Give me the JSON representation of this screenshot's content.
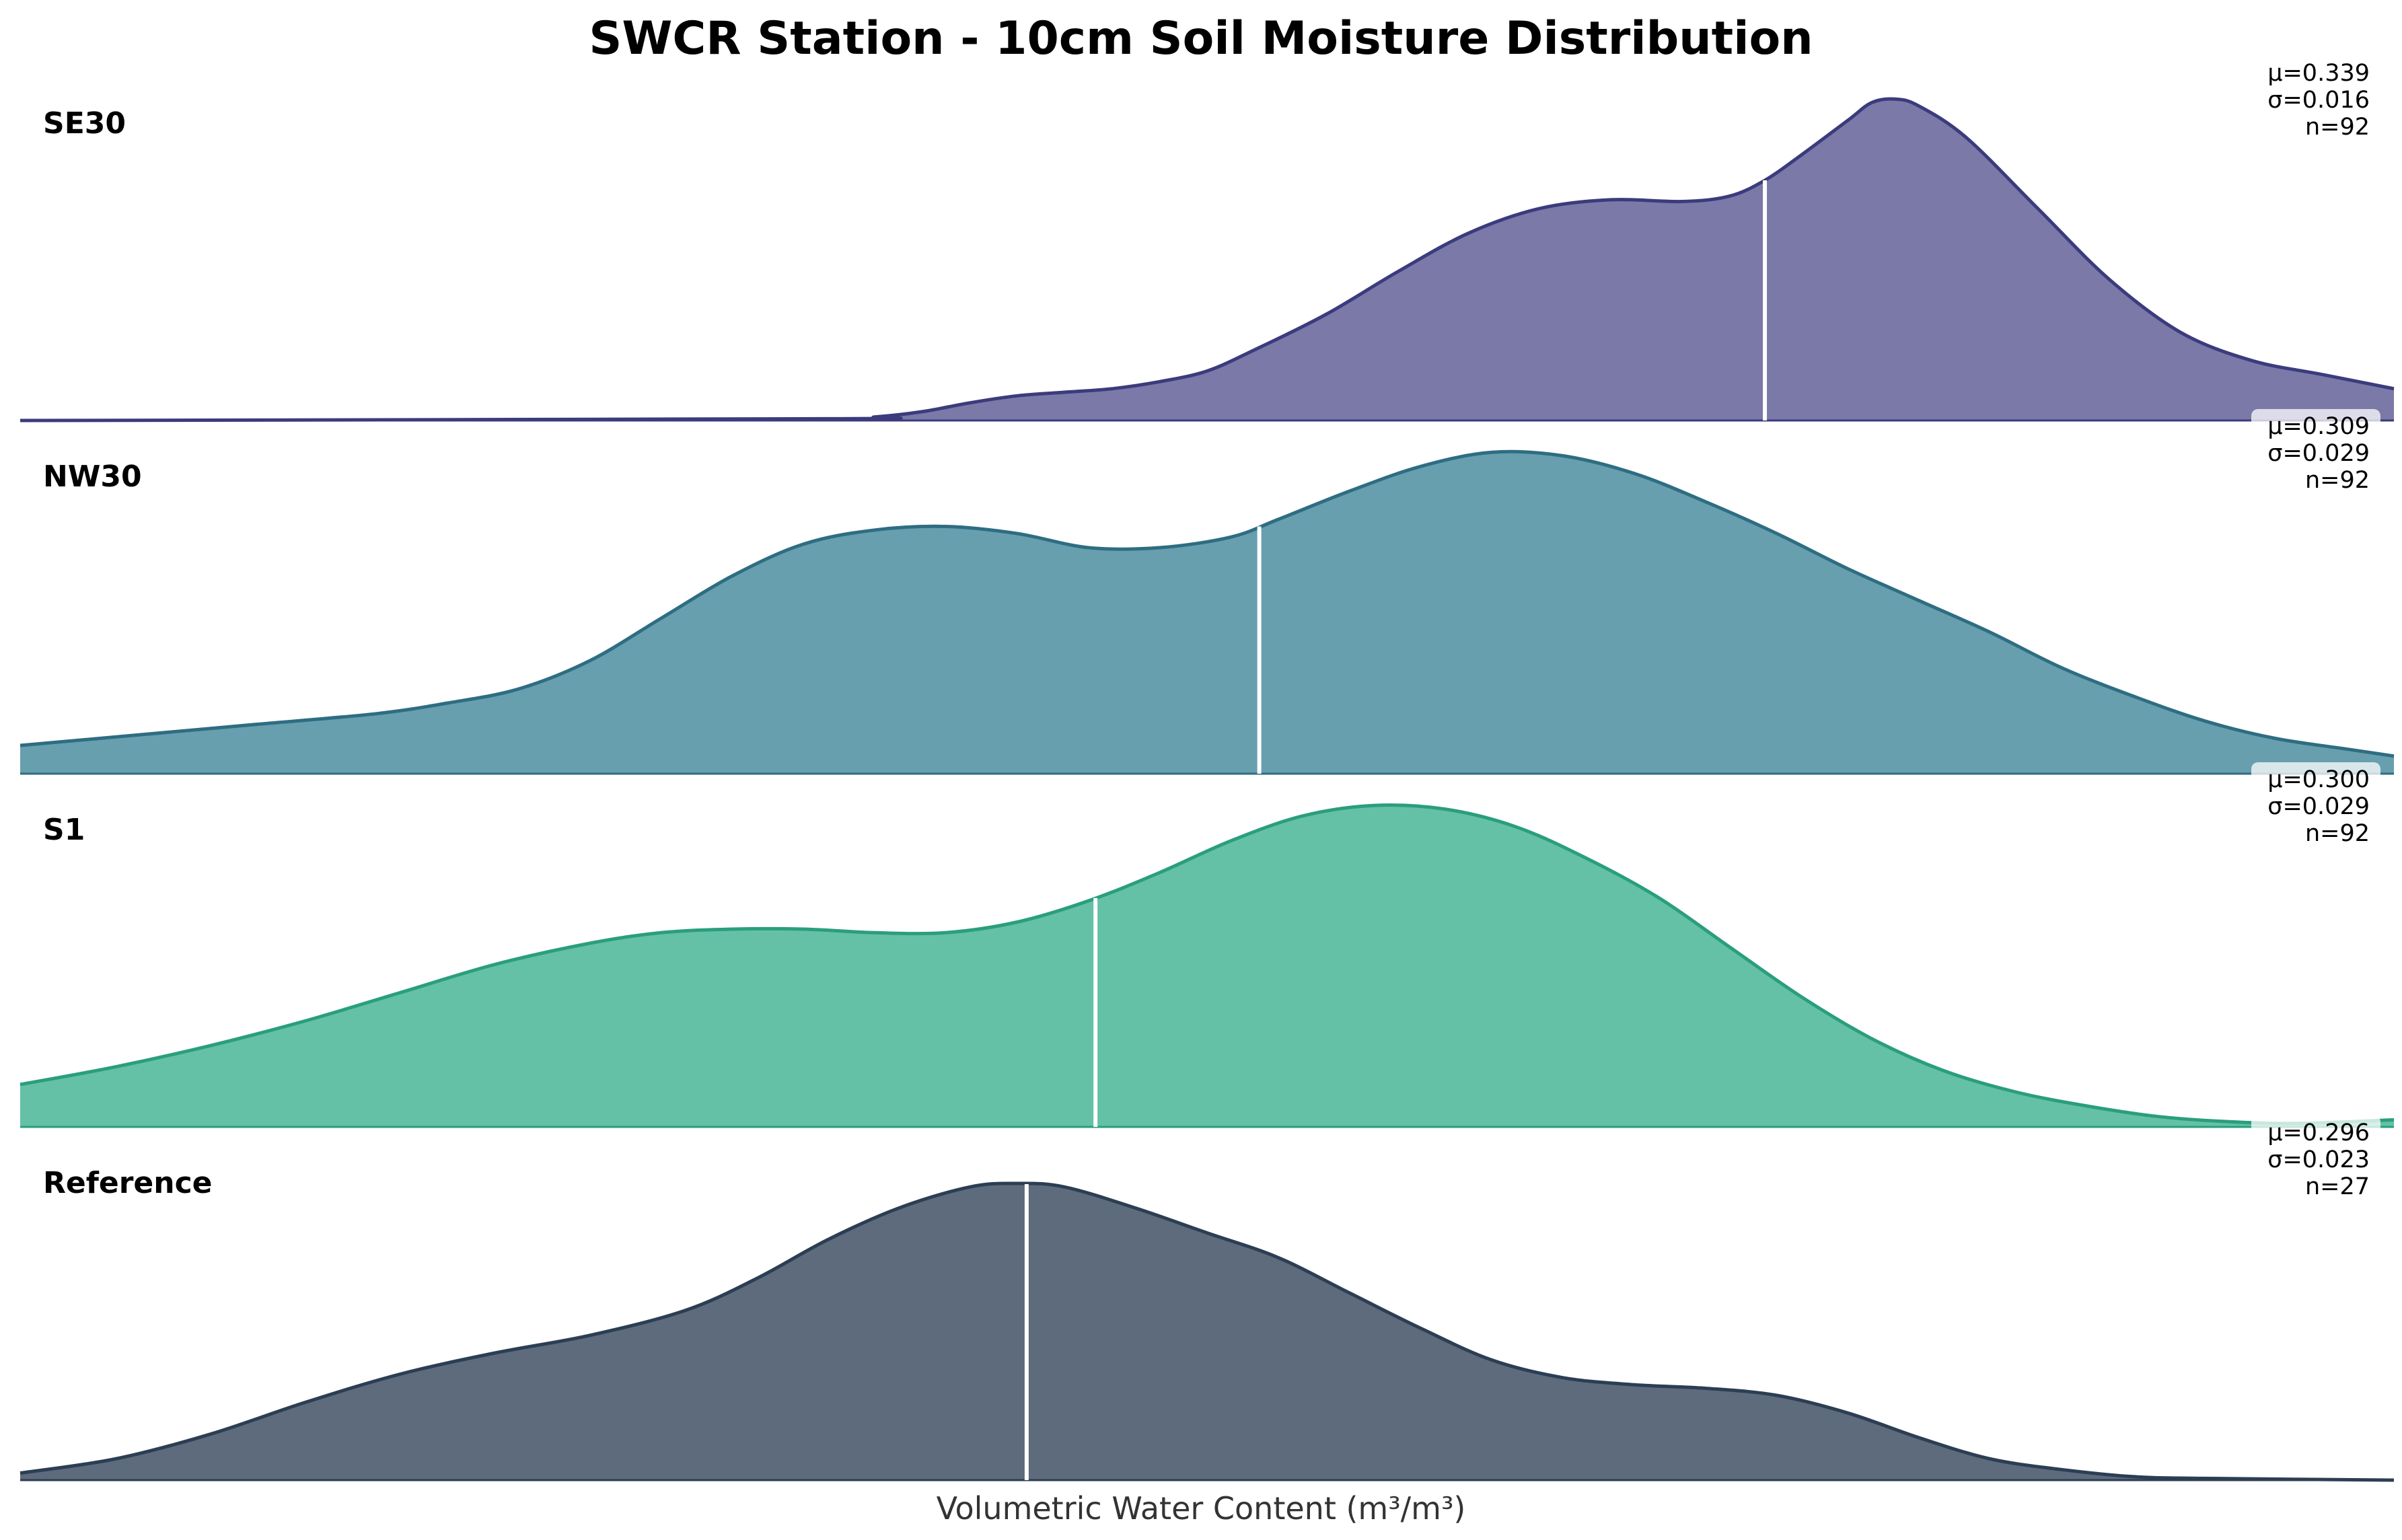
{
  "chart_data": {
    "type": "area",
    "subtype": "ridgeline",
    "title": "SWCR Station - 10cm Soil Moisture Distribution",
    "xlabel": "Volumetric Water Content (m³/m³)",
    "ylabel": "",
    "grid": false,
    "series": [
      {
        "name": "SE30",
        "color": "#3b3b7d",
        "fill": "#7a79a8",
        "stats": {
          "mu": "μ=0.339",
          "sigma": "σ=0.016",
          "n": "n=92"
        },
        "mean_frac": 0.735,
        "density": [
          [
            0,
            0.0
          ],
          [
            0.34,
            0.005
          ],
          [
            0.36,
            0.01
          ],
          [
            0.38,
            0.025
          ],
          [
            0.4,
            0.05
          ],
          [
            0.42,
            0.07
          ],
          [
            0.44,
            0.08
          ],
          [
            0.46,
            0.09
          ],
          [
            0.48,
            0.11
          ],
          [
            0.5,
            0.14
          ],
          [
            0.52,
            0.2
          ],
          [
            0.55,
            0.3
          ],
          [
            0.58,
            0.42
          ],
          [
            0.61,
            0.53
          ],
          [
            0.64,
            0.6
          ],
          [
            0.67,
            0.625
          ],
          [
            0.7,
            0.62
          ],
          [
            0.72,
            0.635
          ],
          [
            0.735,
            0.68
          ],
          [
            0.75,
            0.75
          ],
          [
            0.77,
            0.85
          ],
          [
            0.78,
            0.9
          ],
          [
            0.79,
            0.91
          ],
          [
            0.8,
            0.89
          ],
          [
            0.82,
            0.8
          ],
          [
            0.85,
            0.6
          ],
          [
            0.88,
            0.4
          ],
          [
            0.91,
            0.25
          ],
          [
            0.94,
            0.17
          ],
          [
            0.97,
            0.13
          ],
          [
            1,
            0.09
          ]
        ]
      },
      {
        "name": "NW30",
        "color": "#2e6d82",
        "fill": "#679fae",
        "stats": {
          "mu": "μ=0.309",
          "sigma": "σ=0.029",
          "n": "n=92"
        },
        "mean_frac": 0.522,
        "density": [
          [
            0,
            0.08
          ],
          [
            0.05,
            0.11
          ],
          [
            0.1,
            0.14
          ],
          [
            0.15,
            0.17
          ],
          [
            0.18,
            0.2
          ],
          [
            0.21,
            0.24
          ],
          [
            0.24,
            0.32
          ],
          [
            0.27,
            0.44
          ],
          [
            0.3,
            0.56
          ],
          [
            0.33,
            0.65
          ],
          [
            0.36,
            0.69
          ],
          [
            0.39,
            0.7
          ],
          [
            0.42,
            0.68
          ],
          [
            0.45,
            0.64
          ],
          [
            0.48,
            0.64
          ],
          [
            0.51,
            0.67
          ],
          [
            0.53,
            0.72
          ],
          [
            0.56,
            0.8
          ],
          [
            0.59,
            0.87
          ],
          [
            0.62,
            0.91
          ],
          [
            0.65,
            0.9
          ],
          [
            0.68,
            0.85
          ],
          [
            0.71,
            0.77
          ],
          [
            0.74,
            0.68
          ],
          [
            0.77,
            0.58
          ],
          [
            0.8,
            0.49
          ],
          [
            0.83,
            0.4
          ],
          [
            0.86,
            0.3
          ],
          [
            0.89,
            0.22
          ],
          [
            0.92,
            0.15
          ],
          [
            0.95,
            0.1
          ],
          [
            0.98,
            0.07
          ],
          [
            1,
            0.05
          ]
        ]
      },
      {
        "name": "S1",
        "color": "#2a9e7d",
        "fill": "#64c1a5",
        "stats": {
          "mu": "μ=0.300",
          "sigma": "σ=0.029",
          "n": "n=92"
        },
        "mean_frac": 0.453,
        "density": [
          [
            0,
            0.12
          ],
          [
            0.04,
            0.17
          ],
          [
            0.08,
            0.23
          ],
          [
            0.12,
            0.3
          ],
          [
            0.16,
            0.38
          ],
          [
            0.2,
            0.46
          ],
          [
            0.24,
            0.52
          ],
          [
            0.27,
            0.55
          ],
          [
            0.3,
            0.56
          ],
          [
            0.33,
            0.56
          ],
          [
            0.36,
            0.55
          ],
          [
            0.39,
            0.55
          ],
          [
            0.42,
            0.58
          ],
          [
            0.45,
            0.64
          ],
          [
            0.48,
            0.72
          ],
          [
            0.51,
            0.81
          ],
          [
            0.54,
            0.88
          ],
          [
            0.57,
            0.91
          ],
          [
            0.6,
            0.9
          ],
          [
            0.63,
            0.85
          ],
          [
            0.66,
            0.76
          ],
          [
            0.69,
            0.65
          ],
          [
            0.72,
            0.51
          ],
          [
            0.75,
            0.37
          ],
          [
            0.78,
            0.25
          ],
          [
            0.81,
            0.16
          ],
          [
            0.84,
            0.1
          ],
          [
            0.87,
            0.06
          ],
          [
            0.9,
            0.03
          ],
          [
            0.93,
            0.015
          ],
          [
            0.96,
            0.01
          ],
          [
            1,
            0.02
          ]
        ]
      },
      {
        "name": "Reference",
        "color": "#2c3e54",
        "fill": "#5d6b7c",
        "stats": {
          "mu": "μ=0.296",
          "sigma": "σ=0.023",
          "n": "n=27"
        },
        "mean_frac": 0.424,
        "density": [
          [
            0,
            0.02
          ],
          [
            0.04,
            0.06
          ],
          [
            0.08,
            0.13
          ],
          [
            0.12,
            0.22
          ],
          [
            0.16,
            0.3
          ],
          [
            0.2,
            0.36
          ],
          [
            0.24,
            0.41
          ],
          [
            0.28,
            0.48
          ],
          [
            0.31,
            0.57
          ],
          [
            0.34,
            0.68
          ],
          [
            0.37,
            0.77
          ],
          [
            0.4,
            0.83
          ],
          [
            0.42,
            0.84
          ],
          [
            0.44,
            0.83
          ],
          [
            0.47,
            0.77
          ],
          [
            0.5,
            0.7
          ],
          [
            0.53,
            0.63
          ],
          [
            0.56,
            0.53
          ],
          [
            0.59,
            0.43
          ],
          [
            0.62,
            0.34
          ],
          [
            0.65,
            0.29
          ],
          [
            0.68,
            0.27
          ],
          [
            0.71,
            0.26
          ],
          [
            0.74,
            0.24
          ],
          [
            0.77,
            0.19
          ],
          [
            0.8,
            0.12
          ],
          [
            0.83,
            0.06
          ],
          [
            0.86,
            0.03
          ],
          [
            0.89,
            0.01
          ],
          [
            0.92,
            0.005
          ],
          [
            1,
            0.0
          ]
        ]
      }
    ]
  }
}
